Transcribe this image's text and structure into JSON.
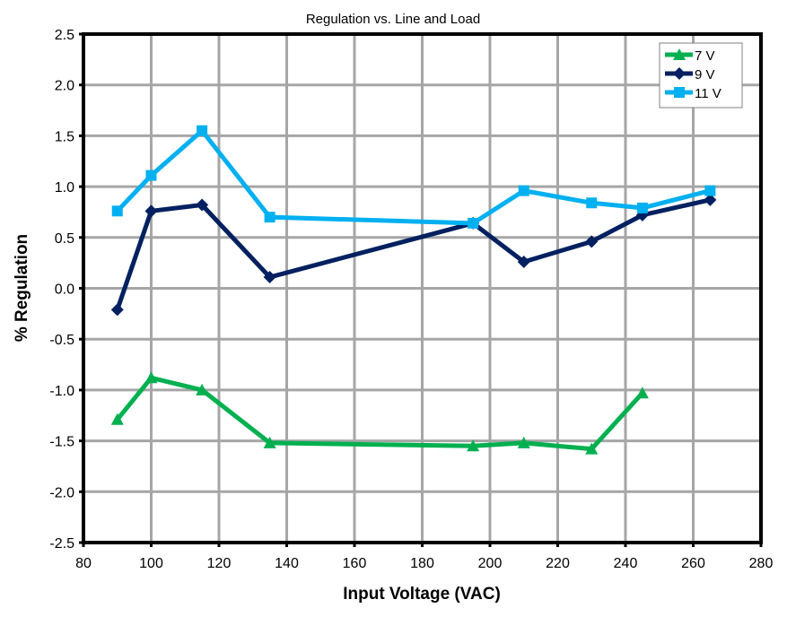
{
  "chart_data": {
    "type": "line",
    "title": "Regulation vs. Line and Load",
    "xlabel": "Input Voltage (VAC)",
    "ylabel": "% Regulation",
    "xlim": [
      80,
      280
    ],
    "ylim": [
      -2.5,
      2.5
    ],
    "x_ticks": [
      80,
      100,
      120,
      140,
      160,
      180,
      200,
      220,
      240,
      260,
      280
    ],
    "y_ticks": [
      2.5,
      2.0,
      1.5,
      1.0,
      0.5,
      0.0,
      -0.5,
      -1.0,
      -1.5,
      -2.0,
      -2.5
    ],
    "x_tick_labels": [
      "80",
      "100",
      "120",
      "140",
      "160",
      "180",
      "200",
      "220",
      "240",
      "260",
      "280"
    ],
    "y_tick_labels": [
      "2.5",
      "2.0",
      "1.5",
      "1.0",
      "0.5",
      "0.0",
      "-0.5",
      "-1.0",
      "-1.5",
      "-2.0",
      "-2.5"
    ],
    "grid": true,
    "legend_position": "top-right",
    "series": [
      {
        "name": "7 V",
        "color": "#00b050",
        "marker": "triangle",
        "x": [
          90,
          100,
          115,
          135,
          195,
          210,
          230,
          245
        ],
        "y": [
          -1.29,
          -0.88,
          -1.0,
          -1.52,
          -1.55,
          -1.52,
          -1.58,
          -1.03
        ]
      },
      {
        "name": "9 V",
        "color": "#002060",
        "marker": "diamond",
        "x": [
          90,
          100,
          115,
          135,
          195,
          210,
          230,
          245,
          265
        ],
        "y": [
          -0.21,
          0.76,
          0.82,
          0.11,
          0.64,
          0.26,
          0.46,
          0.72,
          0.87
        ]
      },
      {
        "name": "11 V",
        "color": "#00b0f0",
        "marker": "square",
        "x": [
          90,
          100,
          115,
          135,
          195,
          210,
          230,
          245,
          265
        ],
        "y": [
          0.76,
          1.11,
          1.55,
          0.7,
          0.64,
          0.96,
          0.84,
          0.79,
          0.96
        ]
      }
    ]
  }
}
